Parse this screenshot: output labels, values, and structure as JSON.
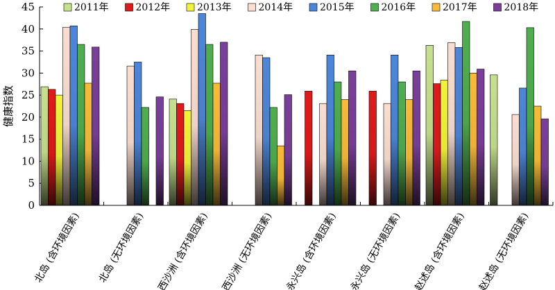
{
  "chart_data": {
    "type": "bar",
    "title": "",
    "xlabel": "",
    "ylabel": "健康指数",
    "ylim": [
      0,
      45
    ],
    "yticks": [
      0,
      5,
      10,
      15,
      20,
      25,
      30,
      35,
      40,
      45
    ],
    "legend_position": "top",
    "categories": [
      "北岛 (含环境因素)",
      "北岛 (无环境因素)",
      "西沙洲 (含环境因素)",
      "西沙洲 (无环境因素)",
      "永兴岛 (含环境因素)",
      "永兴岛 (无环境因素)",
      "赵述岛 (含环境因素)",
      "赵述岛 (无环境因素)"
    ],
    "series": [
      {
        "name": "2011年",
        "color": "#c5e08e",
        "values": [
          26.9,
          null,
          24.1,
          null,
          null,
          null,
          36.3,
          29.6
        ]
      },
      {
        "name": "2012年",
        "color": "#e01a1a",
        "values": [
          26.3,
          null,
          23.1,
          null,
          25.9,
          25.9,
          27.6,
          null
        ]
      },
      {
        "name": "2013年",
        "color": "#f2f23a",
        "values": [
          25.0,
          null,
          21.5,
          null,
          null,
          null,
          28.4,
          null
        ]
      },
      {
        "name": "2014年",
        "color": "#f9ddd0",
        "values": [
          40.4,
          31.6,
          39.9,
          34.1,
          23.1,
          23.1,
          36.9,
          20.6
        ]
      },
      {
        "name": "2015年",
        "color": "#4d86d9",
        "values": [
          40.7,
          32.5,
          43.5,
          33.5,
          34.1,
          34.1,
          35.8,
          26.6
        ]
      },
      {
        "name": "2016年",
        "color": "#4fae4f",
        "values": [
          36.5,
          22.2,
          36.5,
          22.2,
          28.0,
          28.0,
          41.7,
          40.3
        ]
      },
      {
        "name": "2017年",
        "color": "#f6bb3a",
        "values": [
          27.7,
          null,
          27.7,
          13.5,
          24.0,
          24.0,
          30.0,
          22.5
        ]
      },
      {
        "name": "2018年",
        "color": "#7a3f9a",
        "values": [
          35.9,
          24.6,
          37.0,
          25.1,
          30.5,
          30.5,
          30.9,
          19.6
        ]
      }
    ]
  }
}
